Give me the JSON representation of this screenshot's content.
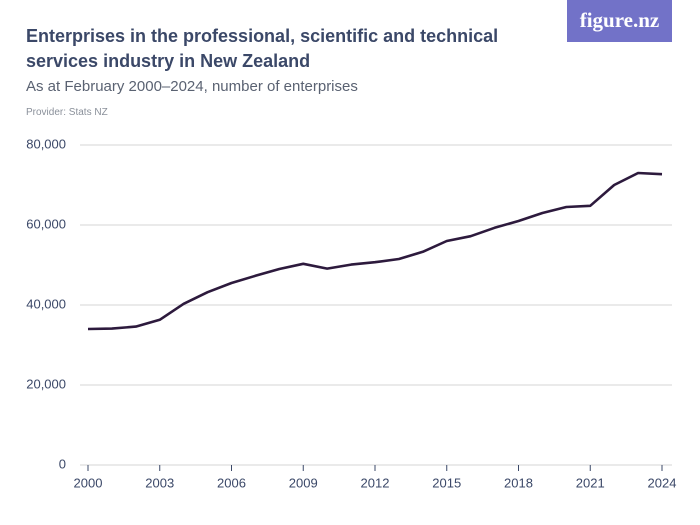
{
  "chart_data": {
    "type": "line",
    "title": "Enterprises in the professional, scientific and technical services industry in New Zealand",
    "subtitle": "As at February 2000–2024, number of enterprises",
    "provider": "Provider: Stats NZ",
    "logo": "figure.nz",
    "x": [
      2000,
      2001,
      2002,
      2003,
      2004,
      2005,
      2006,
      2007,
      2008,
      2009,
      2010,
      2011,
      2012,
      2013,
      2014,
      2015,
      2016,
      2017,
      2018,
      2019,
      2020,
      2021,
      2022,
      2023,
      2024
    ],
    "series": [
      {
        "color": "#2d1a3d",
        "values": [
          34000,
          34100,
          34600,
          36300,
          40300,
          43200,
          45500,
          47300,
          49000,
          50300,
          49100,
          50100,
          50700,
          51500,
          53300,
          56000,
          57200,
          59300,
          61000,
          63000,
          64500,
          64800,
          70000,
          73000,
          72700
        ]
      }
    ],
    "xlim": [
      2000,
      2024
    ],
    "xticks": [
      2000,
      2003,
      2006,
      2009,
      2012,
      2015,
      2018,
      2021,
      2024
    ],
    "ylim": [
      0,
      80000
    ],
    "yticks": [
      0,
      {
        "value": 20000,
        "label": "20,000"
      },
      {
        "value": 40000,
        "label": "40,000"
      },
      {
        "value": 60000,
        "label": "60,000"
      },
      {
        "value": 80000,
        "label": "80,000"
      }
    ],
    "grid": true
  }
}
